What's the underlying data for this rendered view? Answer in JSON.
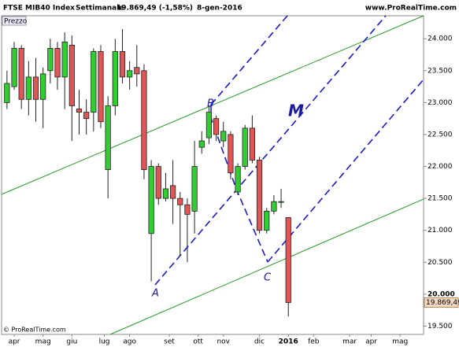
{
  "chart_data": {
    "type": "candlestick",
    "title": "FTSE MIB40 Index",
    "period": "Settimanale",
    "last_change": "19.869,49 (-1,58%)",
    "date": "8-gen-2016",
    "source": "www.ProRealTime.com",
    "panel_label": "Prezzo",
    "footer": "© ProRealTime.com",
    "annotations": [
      "A",
      "B",
      "C",
      "M"
    ],
    "open": [
      23000,
      23250,
      23850,
      23050,
      23400,
      23050,
      23500,
      23850,
      23400,
      23900,
      22900,
      22850,
      22850,
      23800,
      21950,
      22950,
      23800,
      23400,
      23550,
      23500,
      20950,
      22000,
      21500,
      21700,
      21500,
      21400,
      21300,
      22300,
      22450,
      22750,
      22400,
      22500,
      21600,
      22000,
      22600,
      22100,
      21000,
      21300,
      21450,
      21200
    ],
    "high": [
      23500,
      23950,
      23900,
      23650,
      23700,
      23550,
      24000,
      23950,
      24100,
      24050,
      23200,
      23050,
      23850,
      23900,
      23100,
      24000,
      24150,
      23650,
      23900,
      23600,
      22100,
      22050,
      21900,
      22100,
      21600,
      21500,
      22400,
      22550,
      22950,
      22800,
      22700,
      22550,
      22050,
      22650,
      22800,
      22150,
      21350,
      21550,
      21650,
      21200
    ],
    "low": [
      22900,
      23200,
      22900,
      22800,
      22700,
      22600,
      23300,
      23200,
      22900,
      22400,
      22500,
      22500,
      22550,
      22600,
      21500,
      22800,
      23300,
      23200,
      23250,
      21800,
      20200,
      21400,
      21450,
      21100,
      20600,
      20500,
      20950,
      22200,
      22350,
      22400,
      22300,
      21800,
      21550,
      21950,
      22050,
      20950,
      20950,
      21250,
      21350,
      19650
    ],
    "close": [
      23300,
      23850,
      23050,
      23400,
      23050,
      23450,
      23850,
      23400,
      23950,
      22950,
      22850,
      22750,
      23800,
      22700,
      22950,
      23800,
      23400,
      23500,
      23450,
      21950,
      22000,
      21500,
      21650,
      21500,
      21400,
      21250,
      22000,
      22400,
      22850,
      22500,
      22550,
      21900,
      22000,
      22600,
      22100,
      21000,
      21300,
      21450,
      21450,
      19869.49
    ],
    "up_color": "#33cc33",
    "down_color": "#e05555",
    "last_price": {
      "value": 19869.49,
      "label": "19.869,49"
    },
    "xlim": [
      -0.75,
      57.75
    ],
    "xticks": [
      {
        "value": 1,
        "label": "apr"
      },
      {
        "value": 5,
        "label": "mag"
      },
      {
        "value": 9,
        "label": "giu"
      },
      {
        "value": 13.5,
        "label": "lug"
      },
      {
        "value": 17,
        "label": "ago"
      },
      {
        "value": 22.5,
        "label": "set"
      },
      {
        "value": 26.5,
        "label": "ott"
      },
      {
        "value": 30,
        "label": "nov"
      },
      {
        "value": 35,
        "label": "dic"
      },
      {
        "value": 39,
        "label": "2016"
      },
      {
        "value": 42.5,
        "label": "feb"
      },
      {
        "value": 47.5,
        "label": "mar"
      },
      {
        "value": 50.5,
        "label": "apr"
      },
      {
        "value": 54.5,
        "label": "mag"
      }
    ],
    "ylim": [
      19370,
      24360
    ],
    "yticks": [
      {
        "value": 19500,
        "label": "19.500"
      },
      {
        "value": 20000,
        "label": "20.000"
      },
      {
        "value": 20500,
        "label": "20.500"
      },
      {
        "value": 21000,
        "label": "21.000"
      },
      {
        "value": 21500,
        "label": "21.500"
      },
      {
        "value": 22000,
        "label": "22.000"
      },
      {
        "value": 22500,
        "label": "22.500"
      },
      {
        "value": 23000,
        "label": "23.000"
      },
      {
        "value": 23500,
        "label": "23.500"
      },
      {
        "value": 24000,
        "label": "24.000"
      }
    ]
  }
}
